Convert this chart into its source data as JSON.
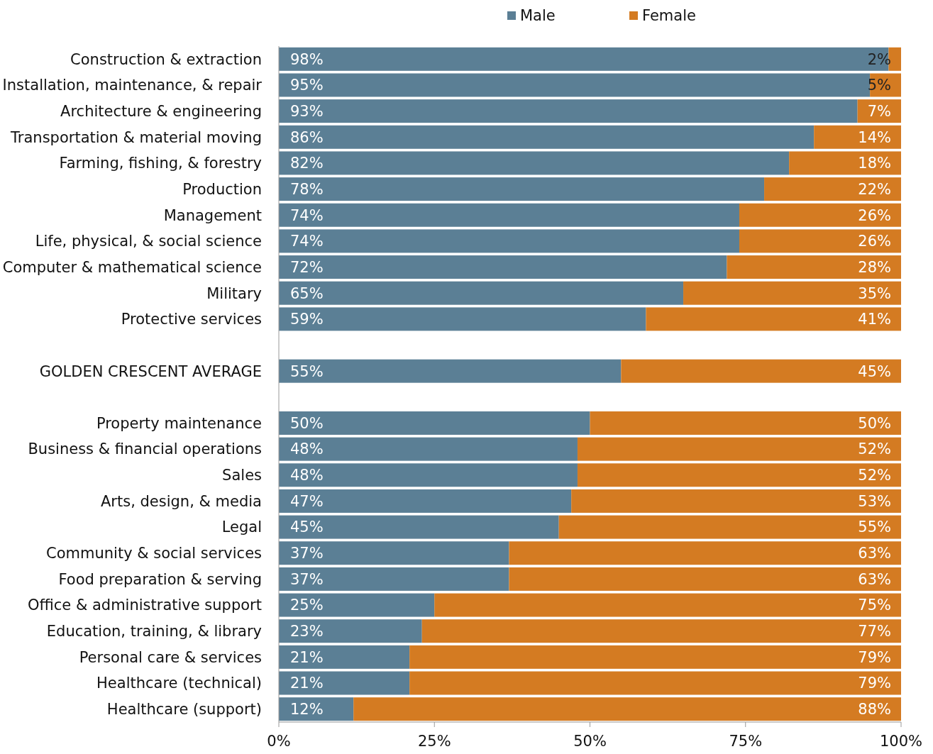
{
  "chart_data": {
    "type": "bar",
    "orientation": "horizontal",
    "stacked": true,
    "legend": "top",
    "grid": false,
    "categories": [
      "Construction & extraction",
      "Installation, maintenance, & repair",
      "Architecture & engineering",
      "Transportation & material moving",
      "Farming, fishing, & forestry",
      "Production",
      "Management",
      "Life, physical, & social science",
      "Computer & mathematical science",
      "Military",
      "Protective services",
      null,
      "GOLDEN CRESCENT AVERAGE",
      null,
      "Property maintenance",
      "Business & financial operations",
      "Sales",
      "Arts, design, & media",
      "Legal",
      "Community & social services",
      "Food preparation & serving",
      "Office & administrative support",
      "Education, training, & library",
      "Personal care & services",
      "Healthcare (technical)",
      "Healthcare (support)"
    ],
    "series": [
      {
        "name": "Male",
        "color": "#5b7f95",
        "values": [
          98,
          95,
          93,
          86,
          82,
          78,
          74,
          74,
          72,
          65,
          59,
          null,
          55,
          null,
          50,
          48,
          48,
          47,
          45,
          37,
          37,
          25,
          23,
          21,
          21,
          12
        ],
        "value_labels": [
          "98%",
          "95%",
          "93%",
          "86%",
          "82%",
          "78%",
          "74%",
          "74%",
          "72%",
          "65%",
          "59%",
          null,
          "55%",
          null,
          "50%",
          "48%",
          "48%",
          "47%",
          "45%",
          "37%",
          "37%",
          "25%",
          "23%",
          "21%",
          "21%",
          "12%"
        ]
      },
      {
        "name": "Female",
        "color": "#d47b22",
        "values": [
          2,
          5,
          7,
          14,
          18,
          22,
          26,
          26,
          28,
          35,
          41,
          null,
          45,
          null,
          50,
          52,
          52,
          53,
          55,
          63,
          63,
          75,
          77,
          79,
          79,
          88
        ],
        "value_labels": [
          "2%",
          "5%",
          "7%",
          "14%",
          "18%",
          "22%",
          "26%",
          "26%",
          "28%",
          "35%",
          "41%",
          null,
          "45%",
          null,
          "50%",
          "52%",
          "52%",
          "53%",
          "55%",
          "63%",
          "63%",
          "75%",
          "77%",
          "79%",
          "79%",
          "88%"
        ]
      }
    ],
    "xlim": [
      0,
      100
    ],
    "xticks": [
      {
        "value": 0,
        "label": "0%"
      },
      {
        "value": 25,
        "label": "25%"
      },
      {
        "value": 50,
        "label": "50%"
      },
      {
        "value": 75,
        "label": "75%"
      },
      {
        "value": 100,
        "label": "100%"
      }
    ]
  }
}
